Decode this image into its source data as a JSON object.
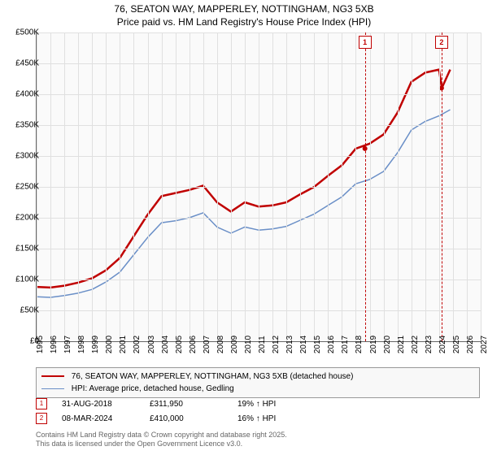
{
  "title_line1": "76, SEATON WAY, MAPPERLEY, NOTTINGHAM, NG3 5XB",
  "title_line2": "Price paid vs. HM Land Registry's House Price Index (HPI)",
  "chart": {
    "type": "line",
    "background_color": "#fafafa",
    "grid_color": "#e0e0e0",
    "axis_color": "#666666",
    "label_fontsize": 10,
    "title_fontsize": 12,
    "xlim": [
      1995,
      2027
    ],
    "ylim": [
      0,
      500000
    ],
    "ytick_step": 50000,
    "y_ticks": [
      "£0",
      "£50K",
      "£100K",
      "£150K",
      "£200K",
      "£250K",
      "£300K",
      "£350K",
      "£400K",
      "£450K",
      "£500K"
    ],
    "x_ticks": [
      1995,
      1996,
      1997,
      1998,
      1999,
      2000,
      2001,
      2002,
      2003,
      2004,
      2005,
      2006,
      2007,
      2008,
      2009,
      2010,
      2011,
      2012,
      2013,
      2014,
      2015,
      2016,
      2017,
      2018,
      2019,
      2020,
      2021,
      2022,
      2023,
      2024,
      2025,
      2026,
      2027
    ],
    "series": [
      {
        "name": "price_paid",
        "label": "76, SEATON WAY, MAPPERLEY, NOTTINGHAM, NG3 5XB (detached house)",
        "color": "#c00000",
        "line_width": 2.5,
        "points": [
          [
            1995,
            88000
          ],
          [
            1996,
            87000
          ],
          [
            1997,
            90000
          ],
          [
            1998,
            95000
          ],
          [
            1999,
            102000
          ],
          [
            2000,
            115000
          ],
          [
            2001,
            135000
          ],
          [
            2002,
            170000
          ],
          [
            2003,
            205000
          ],
          [
            2004,
            235000
          ],
          [
            2005,
            240000
          ],
          [
            2006,
            245000
          ],
          [
            2007,
            252000
          ],
          [
            2008,
            225000
          ],
          [
            2009,
            210000
          ],
          [
            2010,
            225000
          ],
          [
            2011,
            218000
          ],
          [
            2012,
            220000
          ],
          [
            2013,
            225000
          ],
          [
            2014,
            238000
          ],
          [
            2015,
            250000
          ],
          [
            2016,
            268000
          ],
          [
            2017,
            285000
          ],
          [
            2018,
            311950
          ],
          [
            2019,
            320000
          ],
          [
            2020,
            335000
          ],
          [
            2021,
            370000
          ],
          [
            2022,
            420000
          ],
          [
            2023,
            435000
          ],
          [
            2024,
            440000
          ],
          [
            2024.2,
            410000
          ],
          [
            2024.8,
            440000
          ]
        ]
      },
      {
        "name": "hpi",
        "label": "HPI: Average price, detached house, Gedling",
        "color": "#6a8fc7",
        "line_width": 1.5,
        "points": [
          [
            1995,
            72000
          ],
          [
            1996,
            71000
          ],
          [
            1997,
            74000
          ],
          [
            1998,
            78000
          ],
          [
            1999,
            84000
          ],
          [
            2000,
            96000
          ],
          [
            2001,
            112000
          ],
          [
            2002,
            140000
          ],
          [
            2003,
            168000
          ],
          [
            2004,
            192000
          ],
          [
            2005,
            195000
          ],
          [
            2006,
            200000
          ],
          [
            2007,
            208000
          ],
          [
            2008,
            185000
          ],
          [
            2009,
            175000
          ],
          [
            2010,
            185000
          ],
          [
            2011,
            180000
          ],
          [
            2012,
            182000
          ],
          [
            2013,
            186000
          ],
          [
            2014,
            196000
          ],
          [
            2015,
            206000
          ],
          [
            2016,
            220000
          ],
          [
            2017,
            234000
          ],
          [
            2018,
            255000
          ],
          [
            2019,
            262000
          ],
          [
            2020,
            275000
          ],
          [
            2021,
            305000
          ],
          [
            2022,
            342000
          ],
          [
            2023,
            356000
          ],
          [
            2024,
            365000
          ],
          [
            2024.8,
            375000
          ]
        ]
      }
    ],
    "markers": [
      {
        "id": "1",
        "x": 2018.66,
        "date": "31-AUG-2018",
        "price": "£311,950",
        "note": "19% ↑ HPI"
      },
      {
        "id": "2",
        "x": 2024.18,
        "date": "08-MAR-2024",
        "price": "£410,000",
        "note": "16% ↑ HPI"
      }
    ],
    "marker_color": "#c00000",
    "marker_dot_radius": 3
  },
  "footer_line1": "Contains HM Land Registry data © Crown copyright and database right 2025.",
  "footer_line2": "This data is licensed under the Open Government Licence v3.0."
}
